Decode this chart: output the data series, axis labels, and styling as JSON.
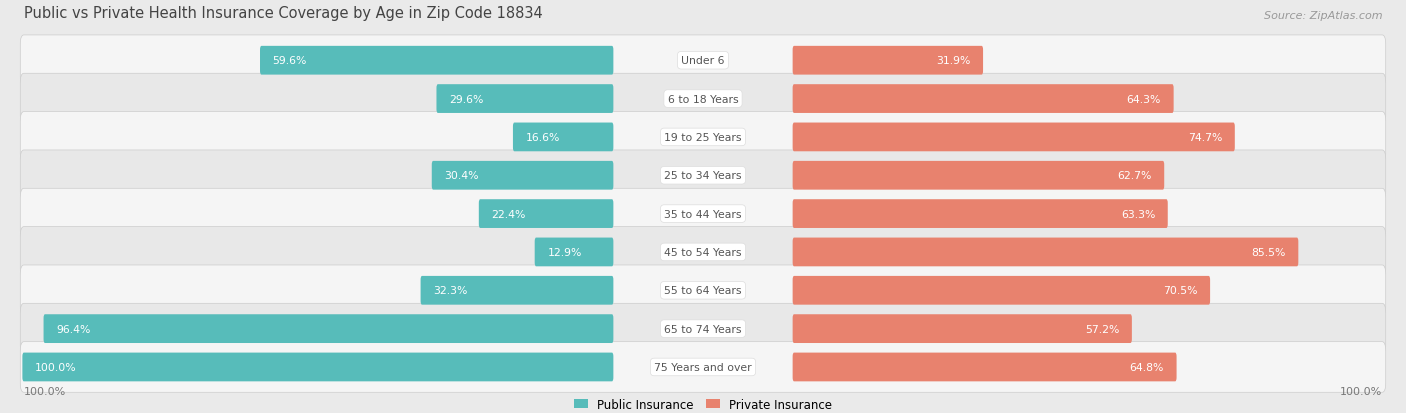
{
  "title": "Public vs Private Health Insurance Coverage by Age in Zip Code 18834",
  "source": "Source: ZipAtlas.com",
  "categories": [
    "Under 6",
    "6 to 18 Years",
    "19 to 25 Years",
    "25 to 34 Years",
    "35 to 44 Years",
    "45 to 54 Years",
    "55 to 64 Years",
    "65 to 74 Years",
    "75 Years and over"
  ],
  "public_values": [
    59.6,
    29.6,
    16.6,
    30.4,
    22.4,
    12.9,
    32.3,
    96.4,
    100.0
  ],
  "private_values": [
    31.9,
    64.3,
    74.7,
    62.7,
    63.3,
    85.5,
    70.5,
    57.2,
    64.8
  ],
  "public_color": "#57bcba",
  "private_color": "#e8826e",
  "background_color": "#eaeaea",
  "row_bg_even": "#f5f5f5",
  "row_bg_odd": "#e8e8e8",
  "axis_label_color": "#777777",
  "value_label_dark": "#555555",
  "value_label_light": "#ffffff",
  "center_label_color": "#555555",
  "title_color": "#444444",
  "source_color": "#999999"
}
